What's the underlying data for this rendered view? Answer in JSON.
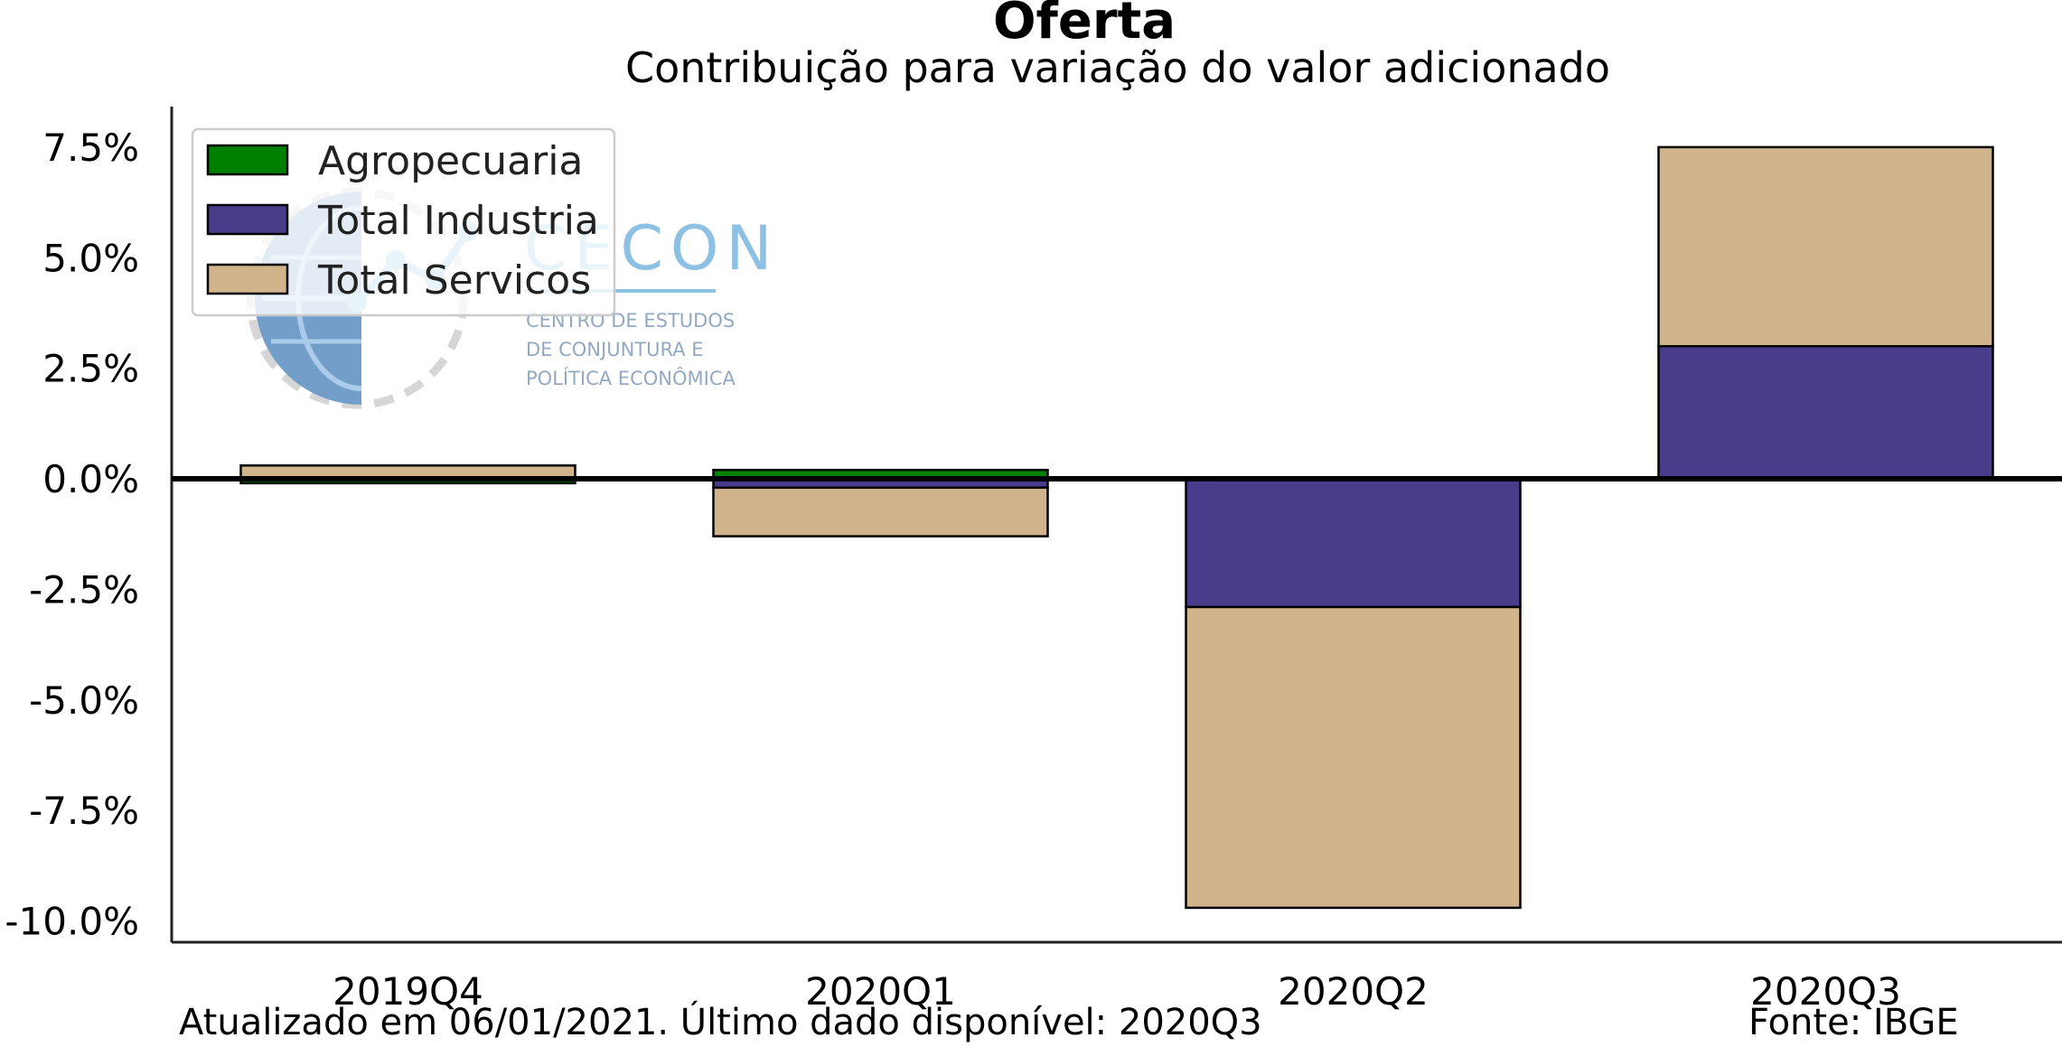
{
  "chart_data": {
    "type": "bar",
    "stacked": true,
    "title": "Oferta",
    "subtitle": "Contribuição para variação do valor adicionado",
    "categories": [
      "2019Q4",
      "2020Q1",
      "2020Q2",
      "2020Q3"
    ],
    "series": [
      {
        "name": "Agropecuaria",
        "color": "#008000",
        "values": [
          -0.1,
          0.2,
          0.0,
          0.0
        ]
      },
      {
        "name": "Total Industria",
        "color": "#483D8B",
        "values": [
          0.0,
          -0.2,
          -2.9,
          3.0
        ]
      },
      {
        "name": "Total Servicos",
        "color": "#D2B48C",
        "values": [
          0.3,
          -1.1,
          -6.8,
          4.5
        ]
      }
    ],
    "ylim": [
      -10.5,
      8.5
    ],
    "yticks": [
      7.5,
      5.0,
      2.5,
      0.0,
      -2.5,
      -5.0,
      -7.5,
      -10.0
    ],
    "ytick_labels": [
      "7.5%",
      "5.0%",
      "2.5%",
      "0.0%",
      "-2.5%",
      "-5.0%",
      "-7.5%",
      "-10.0%"
    ],
    "xlabel": "",
    "ylabel": "",
    "legend_position": "top-left",
    "grid": false
  },
  "watermark": {
    "brand": "CECON",
    "tagline": [
      "CENTRO DE ESTUDOS",
      "DE CONJUNTURA E",
      "POLÍTICA ECONÔMICA"
    ]
  },
  "footer": {
    "updated": "Atualizado em 06/01/2021. Último dado disponível: 2020Q3",
    "source": "Fonte: IBGE"
  }
}
